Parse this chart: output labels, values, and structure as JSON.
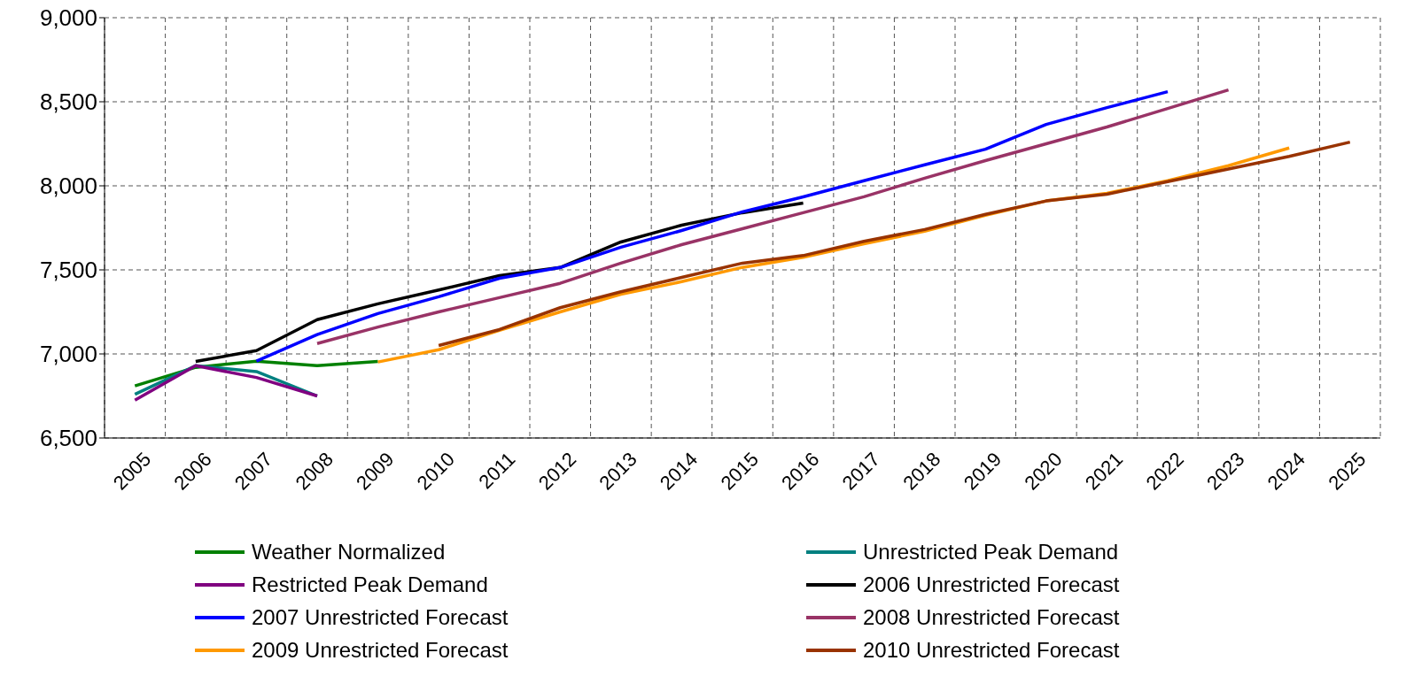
{
  "chart_data": {
    "type": "line",
    "categories": [
      "2005",
      "2006",
      "2007",
      "2008",
      "2009",
      "2010",
      "2011",
      "2012",
      "2013",
      "2014",
      "2015",
      "2016",
      "2017",
      "2018",
      "2019",
      "2020",
      "2021",
      "2022",
      "2023",
      "2024",
      "2025"
    ],
    "ylim": [
      6500,
      9000
    ],
    "yticks": [
      {
        "value": 6500,
        "label": "6,500"
      },
      {
        "value": 7000,
        "label": "7,000"
      },
      {
        "value": 7500,
        "label": "7,500"
      },
      {
        "value": 8000,
        "label": "8,000"
      },
      {
        "value": 8500,
        "label": "8,500"
      },
      {
        "value": 9000,
        "label": "9,000"
      }
    ],
    "grid": true,
    "legend": "bottom",
    "marker": "none",
    "line_style": "solid",
    "series": [
      {
        "name": "Weather Normalized",
        "color": "#008000",
        "values": [
          6810,
          6920,
          6957,
          6930,
          6955,
          null,
          null,
          null,
          null,
          null,
          null,
          null,
          null,
          null,
          null,
          null,
          null,
          null,
          null,
          null,
          null
        ]
      },
      {
        "name": "Unrestricted Peak Demand",
        "color": "#008080",
        "values": [
          6760,
          6930,
          6895,
          6750,
          null,
          null,
          null,
          null,
          null,
          null,
          null,
          null,
          null,
          null,
          null,
          null,
          null,
          null,
          null,
          null,
          null
        ]
      },
      {
        "name": "Restricted Peak Demand",
        "color": "#800080",
        "values": [
          6725,
          6930,
          6860,
          6750,
          null,
          null,
          null,
          null,
          null,
          null,
          null,
          null,
          null,
          null,
          null,
          null,
          null,
          null,
          null,
          null,
          null
        ]
      },
      {
        "name": "2006 Unrestricted Forecast",
        "color": "#000000",
        "values": [
          null,
          6955,
          7020,
          7204,
          7298,
          7380,
          7466,
          7514,
          7666,
          7766,
          7840,
          7897,
          null,
          null,
          null,
          null,
          null,
          null,
          null,
          null,
          null
        ]
      },
      {
        "name": "2007 Unrestricted Forecast",
        "color": "#0000ff",
        "values": [
          null,
          null,
          6957,
          7115,
          7240,
          7340,
          7450,
          7514,
          7635,
          7734,
          7845,
          7934,
          8030,
          8125,
          8218,
          8365,
          8465,
          8560,
          null,
          null,
          null
        ]
      },
      {
        "name": "2008 Unrestricted Forecast",
        "color": "#993366",
        "values": [
          null,
          null,
          null,
          7062,
          7160,
          7250,
          7335,
          7420,
          7540,
          7650,
          7745,
          7840,
          7935,
          8045,
          8150,
          8250,
          8350,
          8460,
          8570,
          null,
          null
        ]
      },
      {
        "name": "2009 Unrestricted Forecast",
        "color": "#ff9900",
        "values": [
          null,
          null,
          null,
          null,
          6952,
          7025,
          7140,
          7250,
          7355,
          7430,
          7515,
          7575,
          7655,
          7730,
          7825,
          7910,
          7955,
          8030,
          8120,
          8225,
          null
        ]
      },
      {
        "name": "2010 Unrestricted Forecast",
        "color": "#993300",
        "values": [
          null,
          null,
          null,
          null,
          null,
          7050,
          7145,
          7275,
          7370,
          7455,
          7540,
          7585,
          7670,
          7740,
          7830,
          7910,
          7950,
          8025,
          8100,
          8175,
          8260
        ]
      }
    ]
  }
}
